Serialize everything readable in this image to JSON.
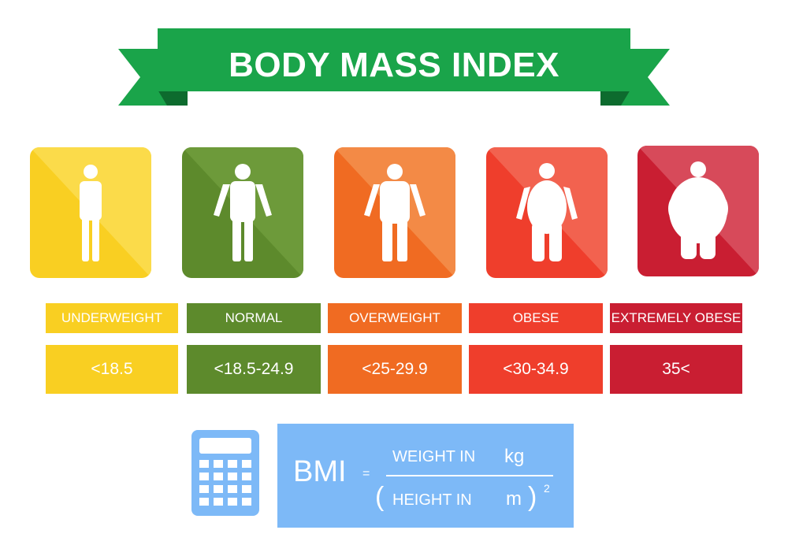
{
  "header": {
    "title": "BODY MASS INDEX",
    "ribbon_color": "#1aa44a",
    "ribbon_tail_color": "#138a3c"
  },
  "categories": [
    {
      "label": "UNDERWEIGHT",
      "range": "<18.5",
      "color": "#f9cf22",
      "icon": "thin-person-icon"
    },
    {
      "label": "NORMAL",
      "range": "<18.5-24.9",
      "color": "#5d8a2c",
      "icon": "normal-person-icon"
    },
    {
      "label": "OVERWEIGHT",
      "range": "<25-29.9",
      "color": "#f06b22",
      "icon": "overweight-person-icon"
    },
    {
      "label": "OBESE",
      "range": "<30-34.9",
      "color": "#ef3e2c",
      "icon": "obese-person-icon"
    },
    {
      "label": "EXTREMELY OBESE",
      "range": "35<",
      "color": "#c91e32",
      "icon": "extremely-obese-person-icon"
    }
  ],
  "formula": {
    "bmi": "BMI",
    "equals": "=",
    "numerator_text": "WEIGHT IN",
    "numerator_unit": "kg",
    "open_paren": "(",
    "denominator_text": "HEIGHT IN",
    "denominator_unit": "m",
    "close_paren": ")",
    "exponent": "2",
    "panel_color": "#7db9f7"
  },
  "calculator": {
    "icon": "calculator-icon",
    "color": "#7db9f7"
  }
}
